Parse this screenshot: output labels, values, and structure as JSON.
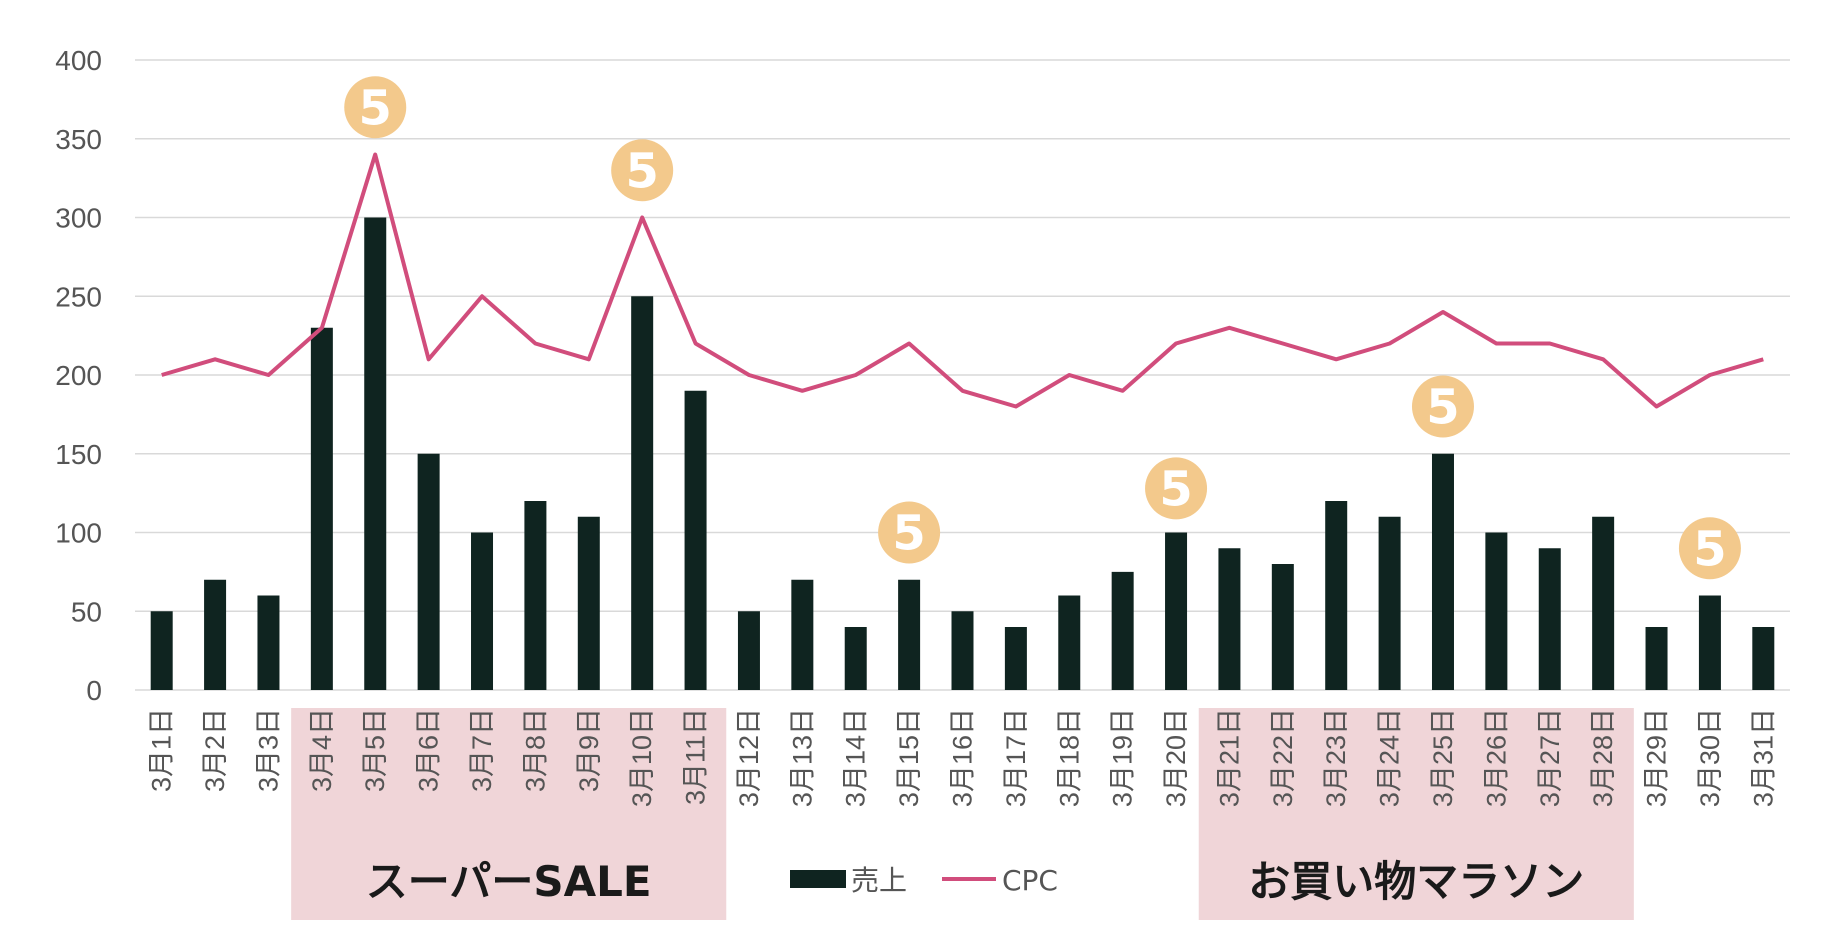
{
  "colors": {
    "bar": "#0f2420",
    "line": "#d14d7c",
    "grid": "#d9d9d9",
    "band": "#f0d5d8",
    "badge": "#f3c98c"
  },
  "chart_data": {
    "type": "bar",
    "categories": [
      "3月1日",
      "3月2日",
      "3月3日",
      "3月4日",
      "3月5日",
      "3月6日",
      "3月7日",
      "3月8日",
      "3月9日",
      "3月10日",
      "3月11日",
      "3月12日",
      "3月13日",
      "3月14日",
      "3月15日",
      "3月16日",
      "3月17日",
      "3月18日",
      "3月19日",
      "3月20日",
      "3月21日",
      "3月22日",
      "3月23日",
      "3月24日",
      "3月25日",
      "3月26日",
      "3月27日",
      "3月28日",
      "3月29日",
      "3月30日",
      "3月31日"
    ],
    "series": [
      {
        "name": "売上",
        "type": "bar",
        "values": [
          50,
          70,
          60,
          230,
          300,
          150,
          100,
          120,
          110,
          250,
          190,
          50,
          70,
          40,
          70,
          50,
          40,
          60,
          75,
          100,
          90,
          80,
          120,
          110,
          150,
          100,
          90,
          110,
          40,
          60,
          40
        ]
      },
      {
        "name": "CPC",
        "type": "line",
        "values": [
          200,
          210,
          200,
          230,
          340,
          210,
          250,
          220,
          210,
          300,
          220,
          200,
          190,
          200,
          220,
          190,
          180,
          200,
          190,
          220,
          230,
          220,
          210,
          220,
          240,
          220,
          220,
          210,
          180,
          200,
          210
        ]
      }
    ],
    "ylim": [
      0,
      400
    ],
    "yticks": [
      "0",
      "50",
      "100",
      "150",
      "200",
      "250",
      "300",
      "350",
      "400"
    ],
    "grid": true,
    "legend_position": "bottom",
    "bands": [
      {
        "label": "スーパーSALE",
        "from": "3月4日",
        "to": "3月11日"
      },
      {
        "label": "お買い物マラソン",
        "from": "3月21日",
        "to": "3月28日"
      }
    ],
    "markers": [
      {
        "label": "5",
        "category": "3月5日",
        "value": 370
      },
      {
        "label": "5",
        "category": "3月10日",
        "value": 330
      },
      {
        "label": "5",
        "category": "3月15日",
        "value": 100
      },
      {
        "label": "5",
        "category": "3月20日",
        "value": 128
      },
      {
        "label": "5",
        "category": "3月25日",
        "value": 180
      },
      {
        "label": "5",
        "category": "3月30日",
        "value": 90
      }
    ]
  }
}
